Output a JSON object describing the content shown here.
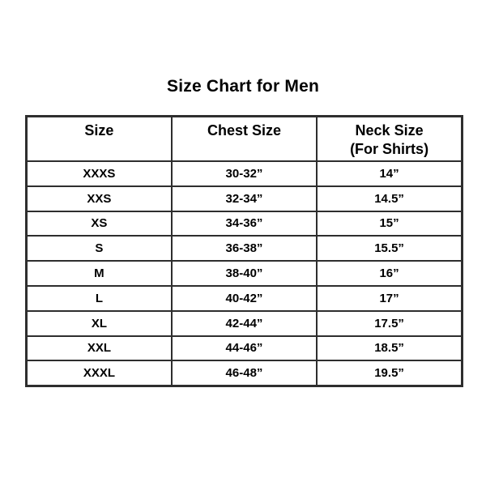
{
  "page": {
    "title": "Size Chart for Men"
  },
  "size_chart": {
    "columns": [
      {
        "line1": "Size",
        "line2": ""
      },
      {
        "line1": "Chest Size",
        "line2": ""
      },
      {
        "line1": "Neck Size",
        "line2": "(For Shirts)"
      }
    ],
    "rows": [
      {
        "size": "XXXS",
        "chest": "30-32”",
        "neck": "14”"
      },
      {
        "size": "XXS",
        "chest": "32-34”",
        "neck": "14.5”"
      },
      {
        "size": "XS",
        "chest": "34-36”",
        "neck": "15”"
      },
      {
        "size": "S",
        "chest": "36-38”",
        "neck": "15.5”"
      },
      {
        "size": "M",
        "chest": "38-40”",
        "neck": "16”"
      },
      {
        "size": "L",
        "chest": "40-42”",
        "neck": "17”"
      },
      {
        "size": "XL",
        "chest": "42-44”",
        "neck": "17.5”"
      },
      {
        "size": "XXL",
        "chest": "44-46”",
        "neck": "18.5”"
      },
      {
        "size": "XXXL",
        "chest": "46-48”",
        "neck": "19.5”"
      }
    ],
    "colors": {
      "background": "#ffffff",
      "text": "#000000",
      "border": "#2e2e2e"
    }
  }
}
